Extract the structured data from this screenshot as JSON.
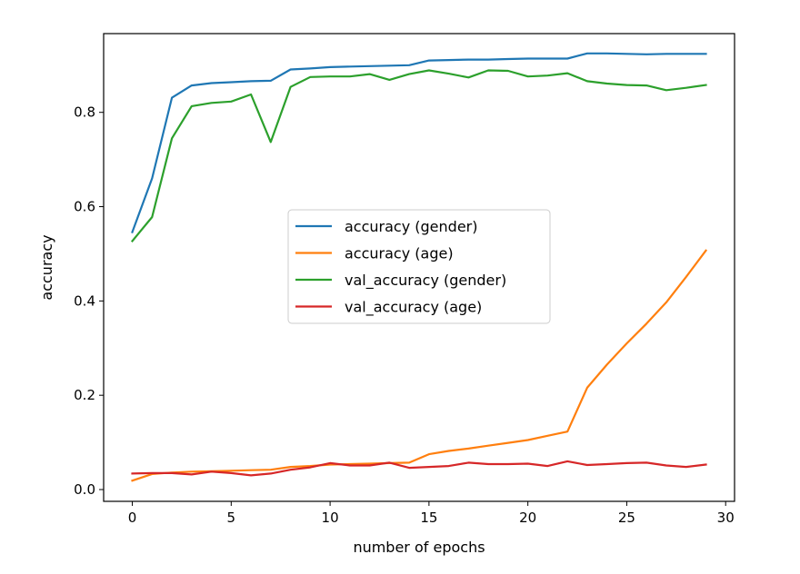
{
  "chart_data": {
    "type": "line",
    "xlabel": "number of epochs",
    "ylabel": "accuracy",
    "xlim": [
      -1.45,
      30.45
    ],
    "ylim": [
      -0.025,
      0.967
    ],
    "x_ticks": [
      "0",
      "5",
      "10",
      "15",
      "20",
      "25",
      "30"
    ],
    "y_ticks": [
      "0.0",
      "0.2",
      "0.4",
      "0.6",
      "0.8"
    ],
    "grid": false,
    "legend_position": "center",
    "x": [
      0,
      1,
      2,
      3,
      4,
      5,
      6,
      7,
      8,
      9,
      10,
      11,
      12,
      13,
      14,
      15,
      16,
      17,
      18,
      19,
      20,
      21,
      22,
      23,
      24,
      25,
      26,
      27,
      28,
      29
    ],
    "series": [
      {
        "name": "accuracy (gender)",
        "color": "#1f77b4",
        "values": [
          0.546,
          0.66,
          0.831,
          0.857,
          0.862,
          0.864,
          0.866,
          0.867,
          0.891,
          0.893,
          0.896,
          0.897,
          0.898,
          0.899,
          0.9,
          0.91,
          0.911,
          0.912,
          0.912,
          0.913,
          0.914,
          0.914,
          0.914,
          0.925,
          0.925,
          0.924,
          0.923,
          0.924,
          0.924,
          0.924
        ]
      },
      {
        "name": "accuracy (age)",
        "color": "#ff7f0e",
        "values": [
          0.019,
          0.033,
          0.036,
          0.038,
          0.039,
          0.04,
          0.041,
          0.042,
          0.048,
          0.05,
          0.053,
          0.054,
          0.055,
          0.056,
          0.057,
          0.075,
          0.082,
          0.087,
          0.093,
          0.099,
          0.105,
          0.114,
          0.123,
          0.216,
          0.265,
          0.31,
          0.352,
          0.397,
          0.451,
          0.507
        ]
      },
      {
        "name": "val_accuracy (gender)",
        "color": "#2ca02c",
        "values": [
          0.527,
          0.578,
          0.745,
          0.813,
          0.82,
          0.823,
          0.838,
          0.737,
          0.854,
          0.875,
          0.876,
          0.876,
          0.881,
          0.869,
          0.881,
          0.889,
          0.882,
          0.874,
          0.889,
          0.888,
          0.876,
          0.878,
          0.883,
          0.866,
          0.861,
          0.858,
          0.857,
          0.847,
          0.852,
          0.858
        ]
      },
      {
        "name": "val_accuracy (age)",
        "color": "#d62728",
        "values": [
          0.034,
          0.035,
          0.035,
          0.032,
          0.038,
          0.035,
          0.03,
          0.034,
          0.042,
          0.047,
          0.056,
          0.051,
          0.051,
          0.057,
          0.046,
          0.048,
          0.05,
          0.057,
          0.054,
          0.054,
          0.055,
          0.05,
          0.06,
          0.052,
          0.054,
          0.056,
          0.057,
          0.051,
          0.048,
          0.053
        ]
      }
    ]
  }
}
